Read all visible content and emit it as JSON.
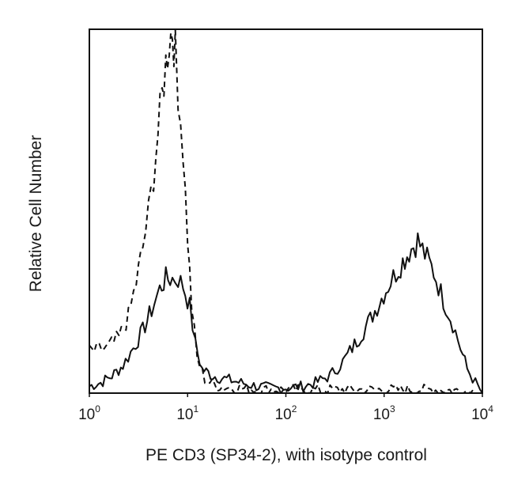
{
  "chart_data": {
    "type": "line",
    "xlabel": "PE CD3 (SP34-2), with isotype control",
    "ylabel": "Relative Cell Number",
    "x_scale": "log",
    "xlim": [
      1,
      10000
    ],
    "ylim": [
      0,
      1.05
    ],
    "grid": false,
    "legend": "none",
    "x_ticks": [
      {
        "base": "10",
        "exp": "0",
        "value": 1
      },
      {
        "base": "10",
        "exp": "1",
        "value": 10
      },
      {
        "base": "10",
        "exp": "2",
        "value": 100
      },
      {
        "base": "10",
        "exp": "3",
        "value": 1000
      },
      {
        "base": "10",
        "exp": "4",
        "value": 10000
      }
    ],
    "series": [
      {
        "style": "solid",
        "color": "#111111",
        "points": [
          [
            1.0,
            0.02
          ],
          [
            1.3,
            0.03
          ],
          [
            1.7,
            0.05
          ],
          [
            2.2,
            0.08
          ],
          [
            2.8,
            0.13
          ],
          [
            3.5,
            0.18
          ],
          [
            4.3,
            0.24
          ],
          [
            5.2,
            0.3
          ],
          [
            6.0,
            0.33
          ],
          [
            7.0,
            0.33
          ],
          [
            8.0,
            0.33
          ],
          [
            9.0,
            0.31
          ],
          [
            10.5,
            0.25
          ],
          [
            12.0,
            0.14
          ],
          [
            14.0,
            0.07
          ],
          [
            18.0,
            0.05
          ],
          [
            25.0,
            0.04
          ],
          [
            35.0,
            0.03
          ],
          [
            50.0,
            0.02
          ],
          [
            70.0,
            0.015
          ],
          [
            100.0,
            0.015
          ],
          [
            150.0,
            0.02
          ],
          [
            200.0,
            0.03
          ],
          [
            280.0,
            0.05
          ],
          [
            380.0,
            0.09
          ],
          [
            500.0,
            0.14
          ],
          [
            650.0,
            0.19
          ],
          [
            850.0,
            0.25
          ],
          [
            1100.0,
            0.31
          ],
          [
            1400.0,
            0.36
          ],
          [
            1800.0,
            0.41
          ],
          [
            2200.0,
            0.44
          ],
          [
            2600.0,
            0.4
          ],
          [
            3200.0,
            0.35
          ],
          [
            4000.0,
            0.27
          ],
          [
            5000.0,
            0.2
          ],
          [
            6000.0,
            0.13
          ],
          [
            7000.0,
            0.07
          ],
          [
            8500.0,
            0.03
          ],
          [
            10000.0,
            0.0
          ]
        ]
      },
      {
        "style": "dashed",
        "color": "#111111",
        "points": [
          [
            1.0,
            0.12
          ],
          [
            1.5,
            0.13
          ],
          [
            2.0,
            0.16
          ],
          [
            2.5,
            0.22
          ],
          [
            3.0,
            0.32
          ],
          [
            3.5,
            0.42
          ],
          [
            4.0,
            0.52
          ],
          [
            4.5,
            0.63
          ],
          [
            5.0,
            0.75
          ],
          [
            5.5,
            0.86
          ],
          [
            6.0,
            0.95
          ],
          [
            6.5,
            1.02
          ],
          [
            7.0,
            1.05
          ],
          [
            7.5,
            0.98
          ],
          [
            8.0,
            0.88
          ],
          [
            9.0,
            0.7
          ],
          [
            10.0,
            0.45
          ],
          [
            11.0,
            0.25
          ],
          [
            12.5,
            0.1
          ],
          [
            15.0,
            0.04
          ],
          [
            20.0,
            0.02
          ],
          [
            30.0,
            0.015
          ],
          [
            50.0,
            0.01
          ],
          [
            100.0,
            0.01
          ],
          [
            200.0,
            0.01
          ],
          [
            500.0,
            0.01
          ],
          [
            1000.0,
            0.01
          ],
          [
            3000.0,
            0.01
          ],
          [
            10000.0,
            0.005
          ]
        ]
      }
    ]
  }
}
